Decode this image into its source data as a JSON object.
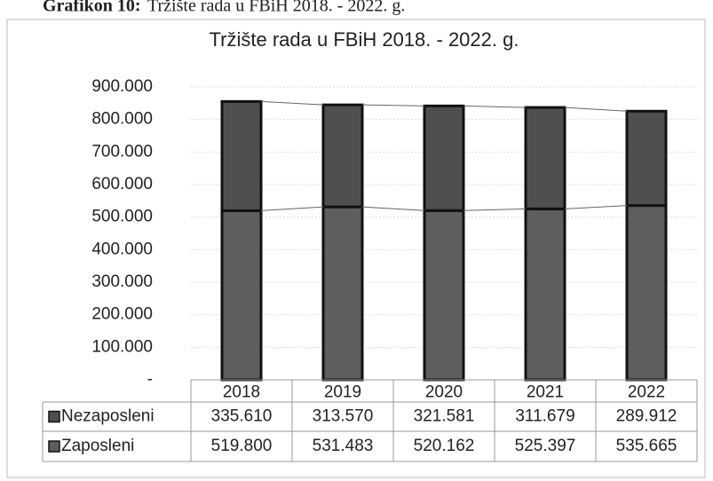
{
  "caption": {
    "label": "Grafikon 10:",
    "text": "Tržište rada u FBiH 2018. - 2022. g."
  },
  "chart_data": {
    "type": "bar",
    "stacked": true,
    "title": "Tržište rada u FBiH 2018. - 2022. g.",
    "categories": [
      "2018",
      "2019",
      "2020",
      "2021",
      "2022"
    ],
    "series": [
      {
        "name": "Zaposleni",
        "color": "#5e5e5e",
        "values": [
          519800,
          531483,
          520162,
          525397,
          535665
        ],
        "value_labels": [
          "519.800",
          "531.483",
          "520.162",
          "525.397",
          "535.665"
        ]
      },
      {
        "name": "Nezaposleni",
        "color": "#4f4f4f",
        "values": [
          335610,
          313570,
          321581,
          311679,
          289912
        ],
        "value_labels": [
          "335.610",
          "313.570",
          "321.581",
          "311.679",
          "289.912"
        ]
      }
    ],
    "ylim": [
      0,
      900000
    ],
    "yticks": [
      {
        "value": 0,
        "label": "-"
      },
      {
        "value": 100000,
        "label": "100.000"
      },
      {
        "value": 200000,
        "label": "200.000"
      },
      {
        "value": 300000,
        "label": "300.000"
      },
      {
        "value": 400000,
        "label": "400.000"
      },
      {
        "value": 500000,
        "label": "500.000"
      },
      {
        "value": 600000,
        "label": "600.000"
      },
      {
        "value": 700000,
        "label": "700.000"
      },
      {
        "value": 800000,
        "label": "800.000"
      },
      {
        "value": 900000,
        "label": "900.000"
      }
    ],
    "grid": true,
    "data_table": true
  }
}
